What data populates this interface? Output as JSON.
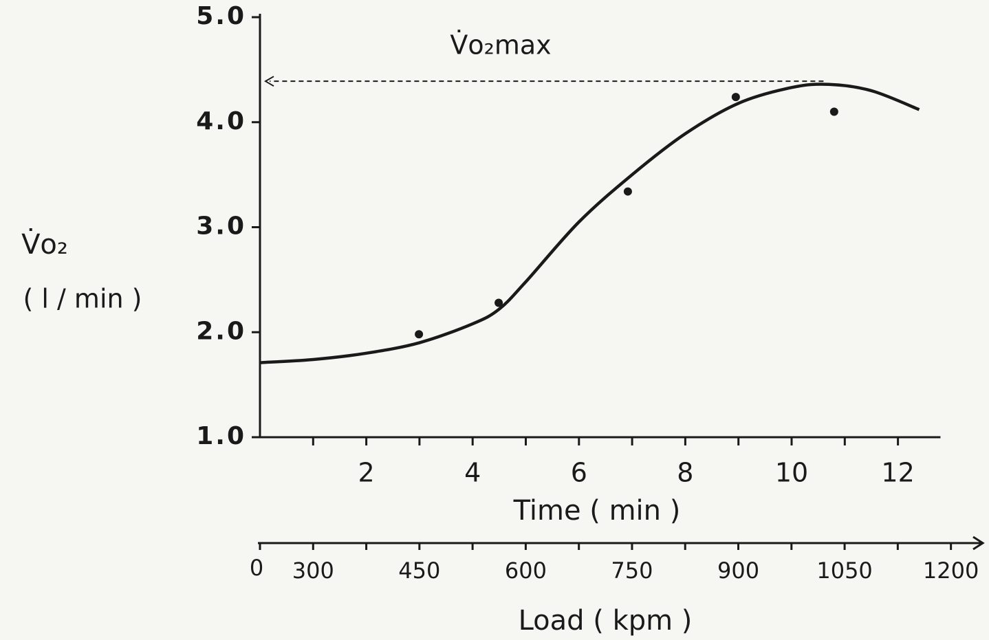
{
  "chart_data": {
    "type": "scatter",
    "ylabel": "V̇o₂",
    "ylabel_units": "( l / min )",
    "xlabel": "Time ( min )",
    "x2label": "Load ( kpm )",
    "x2_origin_label": "0",
    "xlim": [
      0,
      12.8
    ],
    "xticks": [
      2,
      4,
      6,
      8,
      10,
      12
    ],
    "xminor": [
      1,
      3,
      5,
      7,
      9,
      11
    ],
    "ylim": [
      1,
      5
    ],
    "yticks": [
      {
        "value": 1,
        "label": "1.0"
      },
      {
        "value": 2,
        "label": "2.0"
      },
      {
        "value": 3,
        "label": "3.0"
      },
      {
        "value": 4,
        "label": "4.0"
      },
      {
        "value": 5,
        "label": "5.0"
      }
    ],
    "x2lim": [
      225,
      1245
    ],
    "x2ticks": [
      300,
      450,
      600,
      750,
      900,
      1050,
      1200
    ],
    "x2minor": [
      375,
      525,
      675,
      825,
      975,
      1125
    ],
    "color": "#1a1a1a",
    "series": [
      {
        "type": "scatter",
        "x": [
          2.99,
          4.49,
          6.92,
          8.95,
          10.8
        ],
        "values": [
          1.98,
          2.28,
          3.34,
          4.24,
          4.1
        ]
      },
      {
        "type": "line",
        "x": [
          0,
          1,
          2,
          3,
          4,
          4.5,
          5,
          6,
          7,
          8,
          9,
          10,
          10.7,
          11.5,
          12.4
        ],
        "values": [
          1.71,
          1.74,
          1.8,
          1.9,
          2.08,
          2.22,
          2.48,
          3.05,
          3.5,
          3.89,
          4.18,
          4.33,
          4.36,
          4.3,
          4.12
        ]
      }
    ],
    "annotation": {
      "text": "V̇o₂max",
      "value": 4.39,
      "x": 10.6
    }
  }
}
